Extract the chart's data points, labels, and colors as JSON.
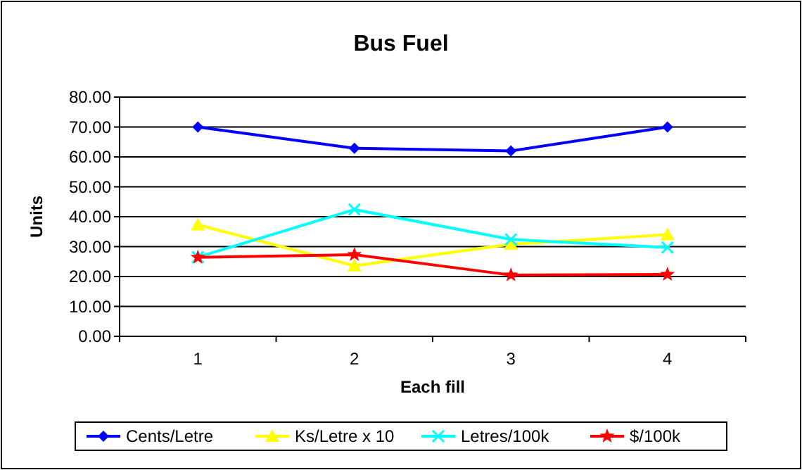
{
  "chart_data": {
    "type": "line",
    "title": "Bus Fuel",
    "xlabel": "Each fill",
    "ylabel": "Units",
    "categories": [
      "1",
      "2",
      "3",
      "4"
    ],
    "series": [
      {
        "name": "Cents/Letre",
        "color": "#0000ff",
        "marker": "diamond",
        "values": [
          70,
          62.9,
          62,
          70
        ]
      },
      {
        "name": "Ks/Letre x 10",
        "color": "#ffff00",
        "marker": "triangle",
        "values": [
          37.3,
          23.6,
          30.8,
          34
        ]
      },
      {
        "name": "Letres/100k",
        "color": "#00ffff",
        "marker": "cross",
        "values": [
          26.5,
          42.4,
          32.4,
          29.7
        ]
      },
      {
        "name": "$/100k",
        "color": "#ff0000",
        "marker": "star",
        "values": [
          26.4,
          27.3,
          20.5,
          20.7
        ]
      }
    ],
    "ylim": [
      0,
      80
    ],
    "yticks": [
      {
        "value": 0,
        "label": "0.00"
      },
      {
        "value": 10,
        "label": "10.00"
      },
      {
        "value": 20,
        "label": "20.00"
      },
      {
        "value": 30,
        "label": "30.00"
      },
      {
        "value": 40,
        "label": "40.00"
      },
      {
        "value": 50,
        "label": "50.00"
      },
      {
        "value": 60,
        "label": "60.00"
      },
      {
        "value": 70,
        "label": "70.00"
      },
      {
        "value": 80,
        "label": "80.00"
      }
    ],
    "grid": "y",
    "legend": "bottom"
  }
}
